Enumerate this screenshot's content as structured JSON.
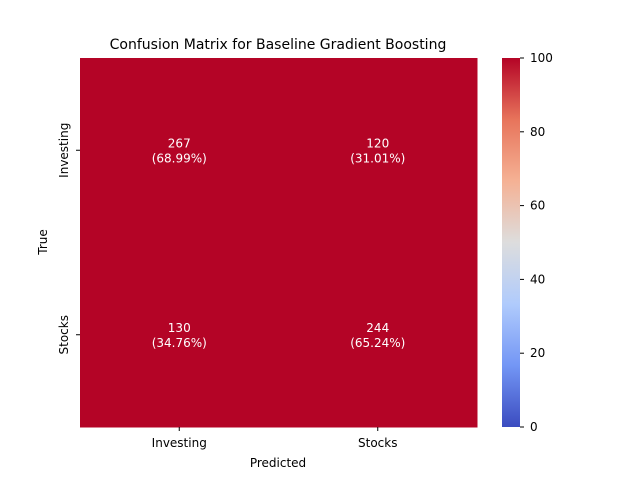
{
  "chart_data": {
    "type": "heatmap",
    "title": "Confusion Matrix for Baseline Gradient Boosting",
    "xlabel": "Predicted",
    "ylabel": "True",
    "x_categories": [
      "Investing",
      "Stocks"
    ],
    "y_categories": [
      "Investing",
      "Stocks"
    ],
    "values": [
      [
        267,
        120
      ],
      [
        130,
        244
      ]
    ],
    "cell_labels": [
      [
        "267\n(68.99%)",
        "120\n(31.01%)"
      ],
      [
        "130\n(34.76%)",
        "244\n(65.24%)"
      ]
    ],
    "colorbar": {
      "range": [
        0,
        100
      ],
      "ticks": [
        "0",
        "20",
        "40",
        "60",
        "80",
        "100"
      ],
      "colormap": "coolwarm",
      "colors": [
        "#3b4cc0",
        "#7396f5",
        "#b0cbfc",
        "#dddddd",
        "#f5b194",
        "#e7745b",
        "#b40426"
      ]
    },
    "cell_color": "#b40426",
    "label_color": "#ffffff"
  }
}
